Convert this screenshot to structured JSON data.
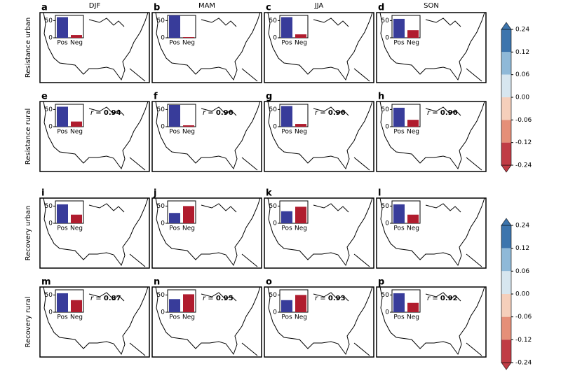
{
  "columns": [
    "DJF",
    "MAM",
    "JJA",
    "SON"
  ],
  "rows": [
    "Resistance urban",
    "Resistance rural",
    "Recovery urban",
    "Recovery rural"
  ],
  "r_symbol": "r =",
  "colorbar": {
    "ticks": [
      0.24,
      0.12,
      0.06,
      {
        "value": 0,
        "label": "0.00"
      },
      -0.06,
      -0.12,
      -0.24
    ],
    "colors": [
      "#3d75ad",
      "#8fb9d8",
      "#d7e6ef",
      "#f5cfbb",
      "#e58f78",
      "#c03c45"
    ]
  },
  "chart_data": [
    {
      "type": "bar",
      "label": "a",
      "categories": [
        "Pos",
        "Neg"
      ],
      "values": [
        60,
        8
      ],
      "colors": [
        "#383c9a",
        "#b01c2e"
      ],
      "ylim": [
        0,
        65
      ],
      "yticks": [
        0,
        50
      ]
    },
    {
      "type": "bar",
      "label": "b",
      "categories": [
        "Pos",
        "Neg"
      ],
      "values": [
        65,
        2
      ],
      "colors": [
        "#383c9a",
        "#b01c2e"
      ],
      "ylim": [
        0,
        65
      ],
      "yticks": [
        0,
        50
      ]
    },
    {
      "type": "bar",
      "label": "c",
      "categories": [
        "Pos",
        "Neg"
      ],
      "values": [
        60,
        10
      ],
      "colors": [
        "#383c9a",
        "#b01c2e"
      ],
      "ylim": [
        0,
        65
      ],
      "yticks": [
        0,
        50
      ]
    },
    {
      "type": "bar",
      "label": "d",
      "categories": [
        "Pos",
        "Neg"
      ],
      "values": [
        55,
        22
      ],
      "colors": [
        "#383c9a",
        "#b01c2e"
      ],
      "ylim": [
        0,
        65
      ],
      "yticks": [
        0,
        50
      ]
    },
    {
      "type": "bar",
      "label": "e",
      "categories": [
        "Pos",
        "Neg"
      ],
      "values": [
        58,
        15
      ],
      "colors": [
        "#383c9a",
        "#b01c2e"
      ],
      "ylim": [
        0,
        65
      ],
      "yticks": [
        0,
        50
      ],
      "r": 0.94
    },
    {
      "type": "bar",
      "label": "f",
      "categories": [
        "Pos",
        "Neg"
      ],
      "values": [
        63,
        4
      ],
      "colors": [
        "#383c9a",
        "#b01c2e"
      ],
      "ylim": [
        0,
        65
      ],
      "yticks": [
        0,
        50
      ],
      "r": 0.96
    },
    {
      "type": "bar",
      "label": "g",
      "categories": [
        "Pos",
        "Neg"
      ],
      "values": [
        60,
        8
      ],
      "colors": [
        "#383c9a",
        "#b01c2e"
      ],
      "ylim": [
        0,
        65
      ],
      "yticks": [
        0,
        50
      ],
      "r": 0.96
    },
    {
      "type": "bar",
      "label": "h",
      "categories": [
        "Pos",
        "Neg"
      ],
      "values": [
        55,
        20
      ],
      "colors": [
        "#383c9a",
        "#b01c2e"
      ],
      "ylim": [
        0,
        65
      ],
      "yticks": [
        0,
        50
      ],
      "r": 0.96
    },
    {
      "type": "bar",
      "label": "i",
      "categories": [
        "Pos",
        "Neg"
      ],
      "values": [
        55,
        25
      ],
      "colors": [
        "#383c9a",
        "#b01c2e"
      ],
      "ylim": [
        0,
        65
      ],
      "yticks": [
        0,
        50
      ]
    },
    {
      "type": "bar",
      "label": "j",
      "categories": [
        "Pos",
        "Neg"
      ],
      "values": [
        30,
        50
      ],
      "colors": [
        "#383c9a",
        "#b01c2e"
      ],
      "ylim": [
        0,
        65
      ],
      "yticks": [
        0,
        50
      ]
    },
    {
      "type": "bar",
      "label": "k",
      "categories": [
        "Pos",
        "Neg"
      ],
      "values": [
        35,
        48
      ],
      "colors": [
        "#383c9a",
        "#b01c2e"
      ],
      "ylim": [
        0,
        65
      ],
      "yticks": [
        0,
        50
      ]
    },
    {
      "type": "bar",
      "label": "l",
      "categories": [
        "Pos",
        "Neg"
      ],
      "values": [
        55,
        25
      ],
      "colors": [
        "#383c9a",
        "#b01c2e"
      ],
      "ylim": [
        0,
        65
      ],
      "yticks": [
        0,
        50
      ]
    },
    {
      "type": "bar",
      "label": "m",
      "categories": [
        "Pos",
        "Neg"
      ],
      "values": [
        55,
        35
      ],
      "colors": [
        "#383c9a",
        "#b01c2e"
      ],
      "ylim": [
        0,
        65
      ],
      "yticks": [
        0,
        50
      ],
      "r": 0.87
    },
    {
      "type": "bar",
      "label": "n",
      "categories": [
        "Pos",
        "Neg"
      ],
      "values": [
        38,
        52
      ],
      "colors": [
        "#383c9a",
        "#b01c2e"
      ],
      "ylim": [
        0,
        65
      ],
      "yticks": [
        0,
        50
      ],
      "r": 0.95
    },
    {
      "type": "bar",
      "label": "o",
      "categories": [
        "Pos",
        "Neg"
      ],
      "values": [
        35,
        50
      ],
      "colors": [
        "#383c9a",
        "#b01c2e"
      ],
      "ylim": [
        0,
        65
      ],
      "yticks": [
        0,
        50
      ],
      "r": 0.93
    },
    {
      "type": "bar",
      "label": "p",
      "categories": [
        "Pos",
        "Neg"
      ],
      "values": [
        55,
        27
      ],
      "colors": [
        "#383c9a",
        "#b01c2e"
      ],
      "ylim": [
        0,
        65
      ],
      "yticks": [
        0,
        50
      ],
      "r": 0.92
    }
  ]
}
